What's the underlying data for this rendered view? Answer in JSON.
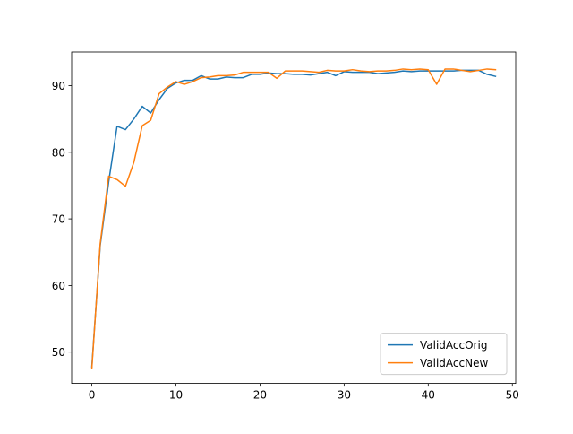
{
  "chart_data": {
    "type": "line",
    "title": "",
    "xlabel": "",
    "ylabel": "",
    "xlim": [
      -2.4,
      50.4
    ],
    "ylim": [
      45.3,
      95.05
    ],
    "xticks": [
      0,
      10,
      20,
      30,
      40,
      50
    ],
    "yticks": [
      50,
      60,
      70,
      80,
      90
    ],
    "grid": false,
    "legend": {
      "placement": "lower-right"
    },
    "series": [
      {
        "name": "ValidAccOrig",
        "color": "#1f77b4",
        "x": [
          0,
          1,
          2,
          3,
          4,
          5,
          6,
          7,
          8,
          9,
          10,
          11,
          12,
          13,
          14,
          15,
          16,
          17,
          18,
          19,
          20,
          21,
          22,
          23,
          24,
          25,
          26,
          27,
          28,
          29,
          30,
          31,
          32,
          33,
          34,
          35,
          36,
          37,
          38,
          39,
          40,
          41,
          42,
          43,
          44,
          45,
          46,
          47,
          48
        ],
        "values": [
          47.8,
          66.0,
          75.5,
          83.9,
          83.4,
          85.0,
          86.9,
          85.9,
          87.9,
          89.6,
          90.4,
          90.8,
          90.8,
          91.5,
          91.0,
          91.0,
          91.3,
          91.2,
          91.2,
          91.7,
          91.7,
          91.9,
          91.8,
          91.8,
          91.7,
          91.7,
          91.6,
          91.8,
          92.0,
          91.5,
          92.1,
          92.0,
          92.0,
          92.0,
          91.8,
          91.9,
          92.0,
          92.2,
          92.1,
          92.2,
          92.2,
          92.2,
          92.2,
          92.2,
          92.3,
          92.3,
          92.3,
          91.7,
          91.4
        ]
      },
      {
        "name": "ValidAccNew",
        "color": "#ff7f0e",
        "x": [
          0,
          1,
          2,
          3,
          4,
          5,
          6,
          7,
          8,
          9,
          10,
          11,
          12,
          13,
          14,
          15,
          16,
          17,
          18,
          19,
          20,
          21,
          22,
          23,
          24,
          25,
          26,
          27,
          28,
          29,
          30,
          31,
          32,
          33,
          34,
          35,
          36,
          37,
          38,
          39,
          40,
          41,
          42,
          43,
          44,
          45,
          46,
          47,
          48
        ],
        "values": [
          47.5,
          66.3,
          76.4,
          75.9,
          74.9,
          78.5,
          84.0,
          84.8,
          88.8,
          89.8,
          90.6,
          90.2,
          90.6,
          91.2,
          91.3,
          91.5,
          91.5,
          91.6,
          92.0,
          92.0,
          92.0,
          92.0,
          91.1,
          92.2,
          92.2,
          92.2,
          92.1,
          92.0,
          92.3,
          92.2,
          92.2,
          92.4,
          92.2,
          92.1,
          92.2,
          92.2,
          92.3,
          92.5,
          92.4,
          92.5,
          92.4,
          90.2,
          92.5,
          92.5,
          92.3,
          92.1,
          92.3,
          92.5,
          92.4
        ]
      }
    ]
  }
}
